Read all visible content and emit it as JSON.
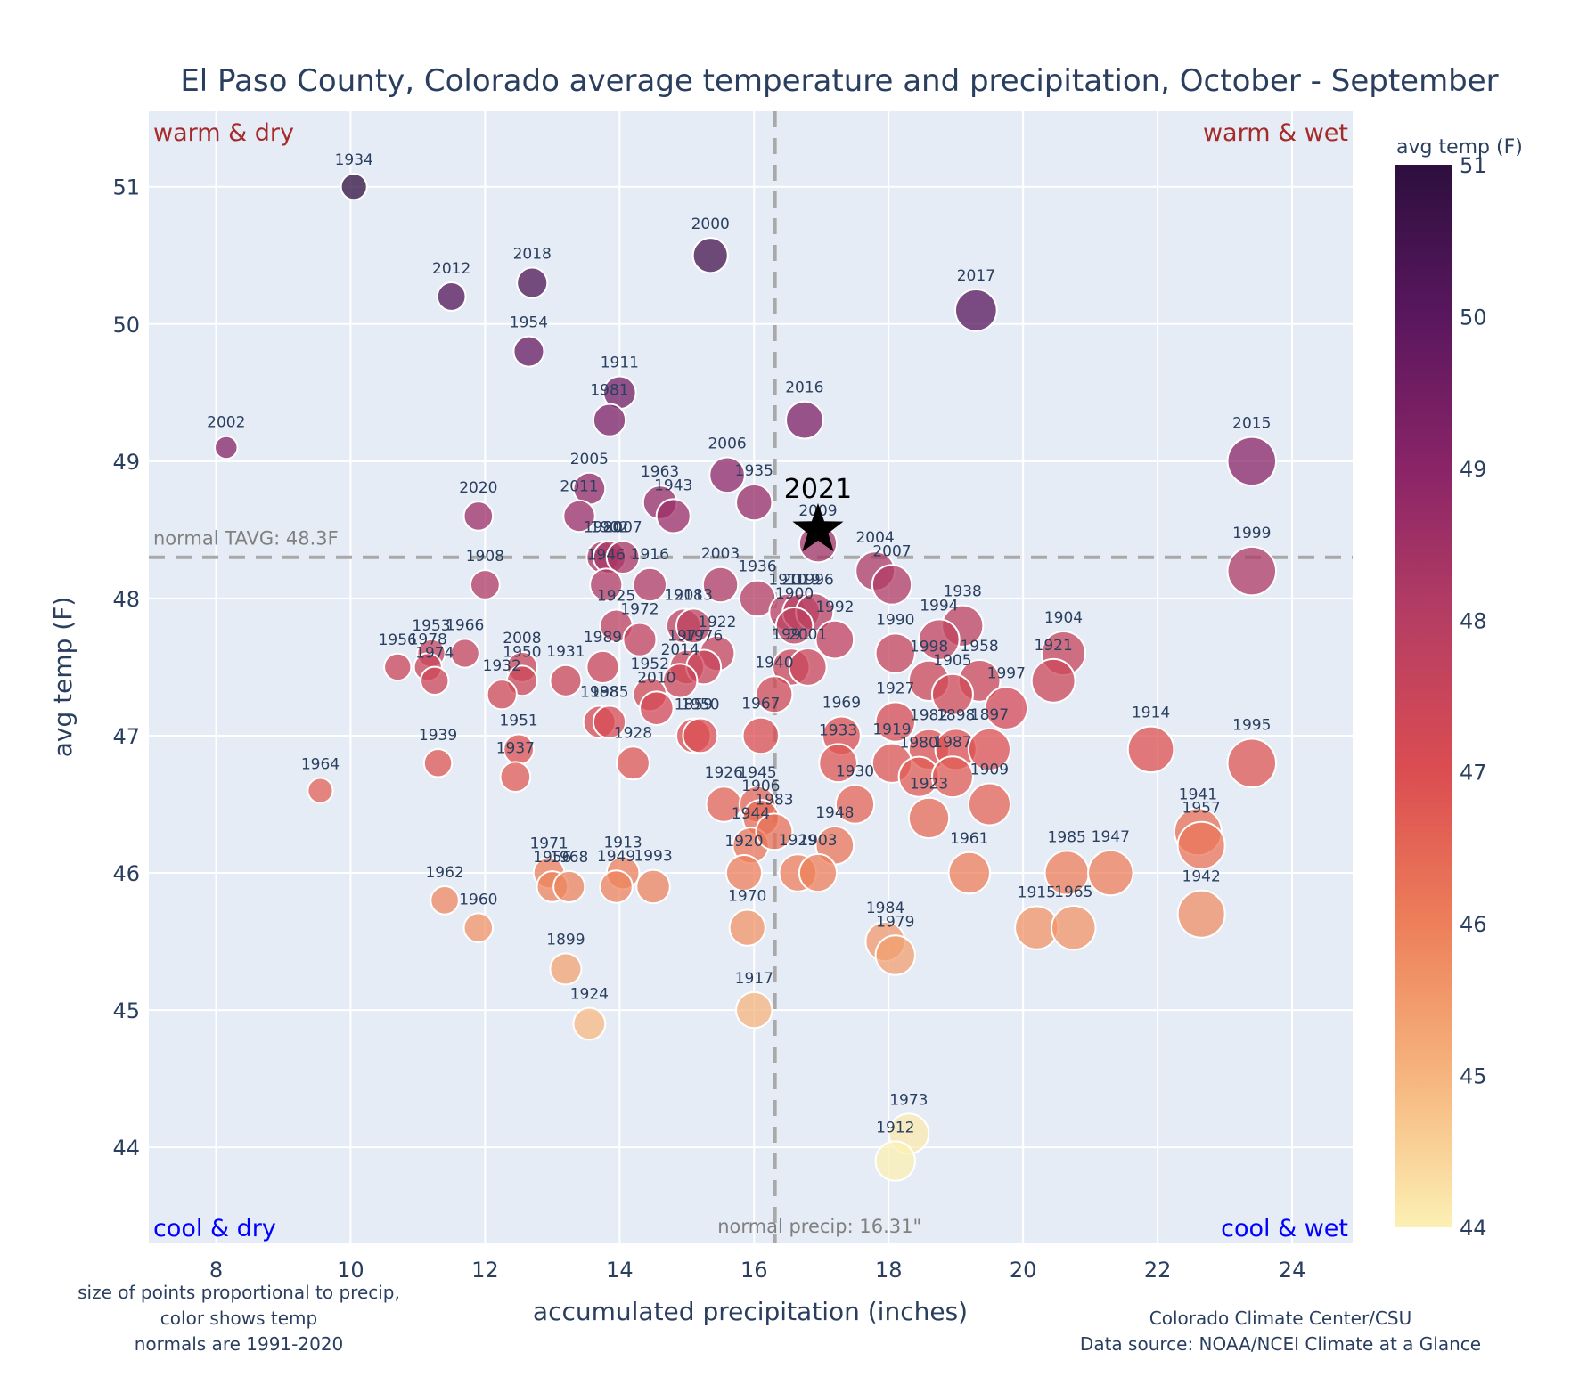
{
  "chart_data": {
    "type": "scatter",
    "title": "El Paso County, Colorado average temperature and precipitation, October - September",
    "xlabel": "accumulated precipitation (inches)",
    "ylabel": "avg temp (F)",
    "xlim": [
      7.0,
      24.9
    ],
    "ylim": [
      43.3,
      51.55
    ],
    "xticks": [
      8,
      10,
      12,
      14,
      16,
      18,
      20,
      22,
      24
    ],
    "yticks": [
      44,
      45,
      46,
      47,
      48,
      49,
      50,
      51
    ],
    "grid": true,
    "colorbar": {
      "title": "avg temp (F)",
      "range": [
        44,
        51
      ],
      "ticks": [
        44,
        45,
        46,
        47,
        48,
        49,
        50,
        51
      ],
      "colorscale": [
        "#fcf0b3",
        "#f6b47e",
        "#ed7f5a",
        "#db4d51",
        "#b63e63",
        "#8a2467",
        "#5a175e",
        "#2d0f3e"
      ]
    },
    "normals": {
      "tavg": 48.3,
      "tavg_label": "normal TAVG: 48.3F",
      "precip": 16.31,
      "precip_label": "normal precip: 16.31\""
    },
    "quadrants": {
      "top_left": "warm & dry",
      "top_right": "warm & wet",
      "bottom_left": "cool & dry",
      "bottom_right": "cool & wet"
    },
    "highlight": {
      "label": "2021",
      "x": 16.95,
      "y": 48.5,
      "marker": "star"
    },
    "points": [
      {
        "year": "1934",
        "x": 10.05,
        "y": 51.0
      },
      {
        "year": "2012",
        "x": 11.5,
        "y": 50.2
      },
      {
        "year": "2018",
        "x": 12.7,
        "y": 50.3
      },
      {
        "year": "1954",
        "x": 12.65,
        "y": 49.8
      },
      {
        "year": "2000",
        "x": 15.35,
        "y": 50.5
      },
      {
        "year": "2017",
        "x": 19.3,
        "y": 50.1
      },
      {
        "year": "2002",
        "x": 8.15,
        "y": 49.1
      },
      {
        "year": "1911",
        "x": 14.0,
        "y": 49.5
      },
      {
        "year": "1981",
        "x": 13.85,
        "y": 49.3
      },
      {
        "year": "2016",
        "x": 16.75,
        "y": 49.3
      },
      {
        "year": "2015",
        "x": 23.4,
        "y": 49.0
      },
      {
        "year": "2005",
        "x": 13.55,
        "y": 48.8
      },
      {
        "year": "2011",
        "x": 13.4,
        "y": 48.6
      },
      {
        "year": "2006",
        "x": 15.6,
        "y": 48.9
      },
      {
        "year": "1963",
        "x": 14.6,
        "y": 48.7
      },
      {
        "year": "1943",
        "x": 14.8,
        "y": 48.6
      },
      {
        "year": "1935",
        "x": 16.0,
        "y": 48.7
      },
      {
        "year": "2020",
        "x": 11.9,
        "y": 48.6
      },
      {
        "year": "2009",
        "x": 16.95,
        "y": 48.4
      },
      {
        "year": "1999",
        "x": 23.4,
        "y": 48.2
      },
      {
        "year": "1980",
        "x": 13.75,
        "y": 48.3
      },
      {
        "year": "1902",
        "x": 13.85,
        "y": 48.3
      },
      {
        "year": "2007",
        "x": 14.05,
        "y": 48.3
      },
      {
        "year": "1946",
        "x": 13.8,
        "y": 48.1
      },
      {
        "year": "1916",
        "x": 14.45,
        "y": 48.1
      },
      {
        "year": "1908",
        "x": 12.0,
        "y": 48.1
      },
      {
        "year": "2003",
        "x": 15.5,
        "y": 48.1
      },
      {
        "year": "2004",
        "x": 17.8,
        "y": 48.2
      },
      {
        "year": "2007b",
        "x": 18.05,
        "y": 48.1
      },
      {
        "year": "1936",
        "x": 16.05,
        "y": 48.0
      },
      {
        "year": "1910",
        "x": 16.5,
        "y": 47.9
      },
      {
        "year": "2019",
        "x": 16.7,
        "y": 47.9
      },
      {
        "year": "1996",
        "x": 16.9,
        "y": 47.9
      },
      {
        "year": "1900",
        "x": 16.6,
        "y": 47.8
      },
      {
        "year": "1992",
        "x": 17.2,
        "y": 47.7
      },
      {
        "year": "1925",
        "x": 13.95,
        "y": 47.8
      },
      {
        "year": "1972",
        "x": 14.3,
        "y": 47.7
      },
      {
        "year": "1918",
        "x": 14.95,
        "y": 47.8
      },
      {
        "year": "2013",
        "x": 15.1,
        "y": 47.8
      },
      {
        "year": "1922",
        "x": 15.45,
        "y": 47.6
      },
      {
        "year": "1977",
        "x": 15.0,
        "y": 47.5
      },
      {
        "year": "1976",
        "x": 15.25,
        "y": 47.5
      },
      {
        "year": "2014",
        "x": 14.9,
        "y": 47.4
      },
      {
        "year": "1989",
        "x": 13.75,
        "y": 47.5
      },
      {
        "year": "1952",
        "x": 14.45,
        "y": 47.3
      },
      {
        "year": "2010",
        "x": 14.55,
        "y": 47.2
      },
      {
        "year": "1991",
        "x": 16.55,
        "y": 47.5
      },
      {
        "year": "2001",
        "x": 16.8,
        "y": 47.5
      },
      {
        "year": "1940",
        "x": 16.3,
        "y": 47.3
      },
      {
        "year": "1938",
        "x": 19.1,
        "y": 47.8
      },
      {
        "year": "1994",
        "x": 18.75,
        "y": 47.7
      },
      {
        "year": "1904",
        "x": 20.6,
        "y": 47.6
      },
      {
        "year": "1990",
        "x": 18.1,
        "y": 47.6
      },
      {
        "year": "1998",
        "x": 18.6,
        "y": 47.4
      },
      {
        "year": "1958",
        "x": 19.35,
        "y": 47.4
      },
      {
        "year": "1921",
        "x": 20.45,
        "y": 47.4
      },
      {
        "year": "1905",
        "x": 18.95,
        "y": 47.3
      },
      {
        "year": "1997",
        "x": 19.75,
        "y": 47.2
      },
      {
        "year": "1953",
        "x": 11.2,
        "y": 47.6
      },
      {
        "year": "1966",
        "x": 11.7,
        "y": 47.6
      },
      {
        "year": "1956",
        "x": 10.7,
        "y": 47.5
      },
      {
        "year": "1978",
        "x": 11.15,
        "y": 47.5
      },
      {
        "year": "1974",
        "x": 11.25,
        "y": 47.4
      },
      {
        "year": "2008",
        "x": 12.55,
        "y": 47.5
      },
      {
        "year": "1950",
        "x": 12.55,
        "y": 47.4
      },
      {
        "year": "1931",
        "x": 13.2,
        "y": 47.4
      },
      {
        "year": "1932",
        "x": 12.25,
        "y": 47.3
      },
      {
        "year": "1988",
        "x": 13.7,
        "y": 47.1
      },
      {
        "year": "1985b",
        "x": 13.85,
        "y": 47.1
      },
      {
        "year": "1859",
        "x": 15.1,
        "y": 47.0
      },
      {
        "year": "1950b",
        "x": 15.2,
        "y": 47.0
      },
      {
        "year": "1967",
        "x": 16.1,
        "y": 47.0
      },
      {
        "year": "1969",
        "x": 17.3,
        "y": 47.0
      },
      {
        "year": "1927",
        "x": 18.1,
        "y": 47.1
      },
      {
        "year": "1982",
        "x": 18.6,
        "y": 46.9
      },
      {
        "year": "1898",
        "x": 19.0,
        "y": 46.9
      },
      {
        "year": "1897",
        "x": 19.5,
        "y": 46.9
      },
      {
        "year": "1914",
        "x": 21.9,
        "y": 46.9
      },
      {
        "year": "1995",
        "x": 23.4,
        "y": 46.8
      },
      {
        "year": "1951",
        "x": 12.5,
        "y": 46.9
      },
      {
        "year": "1939",
        "x": 11.3,
        "y": 46.8
      },
      {
        "year": "1937",
        "x": 12.45,
        "y": 46.7
      },
      {
        "year": "1928",
        "x": 14.2,
        "y": 46.8
      },
      {
        "year": "1933",
        "x": 17.25,
        "y": 46.8
      },
      {
        "year": "1919",
        "x": 18.05,
        "y": 46.8
      },
      {
        "year": "1980b",
        "x": 18.45,
        "y": 46.7
      },
      {
        "year": "1987",
        "x": 18.95,
        "y": 46.7
      },
      {
        "year": "1964",
        "x": 9.55,
        "y": 46.6
      },
      {
        "year": "1926",
        "x": 15.55,
        "y": 46.5
      },
      {
        "year": "1945",
        "x": 16.05,
        "y": 46.5
      },
      {
        "year": "1906",
        "x": 16.1,
        "y": 46.4
      },
      {
        "year": "1930",
        "x": 17.5,
        "y": 46.5
      },
      {
        "year": "1909",
        "x": 19.5,
        "y": 46.5
      },
      {
        "year": "1923",
        "x": 18.6,
        "y": 46.4
      },
      {
        "year": "1944",
        "x": 15.95,
        "y": 46.2
      },
      {
        "year": "1983",
        "x": 16.3,
        "y": 46.3
      },
      {
        "year": "1948",
        "x": 17.2,
        "y": 46.2
      },
      {
        "year": "1941",
        "x": 22.6,
        "y": 46.3
      },
      {
        "year": "1957",
        "x": 22.65,
        "y": 46.2
      },
      {
        "year": "1920",
        "x": 15.85,
        "y": 46.0
      },
      {
        "year": "1929",
        "x": 16.65,
        "y": 46.0
      },
      {
        "year": "1903",
        "x": 16.95,
        "y": 46.0
      },
      {
        "year": "1961",
        "x": 19.2,
        "y": 46.0
      },
      {
        "year": "1985",
        "x": 20.65,
        "y": 46.0
      },
      {
        "year": "1947",
        "x": 21.3,
        "y": 46.0
      },
      {
        "year": "1971",
        "x": 12.95,
        "y": 46.0
      },
      {
        "year": "1956b",
        "x": 13.0,
        "y": 45.9
      },
      {
        "year": "1968",
        "x": 13.25,
        "y": 45.9
      },
      {
        "year": "1913",
        "x": 14.05,
        "y": 46.0
      },
      {
        "year": "1949",
        "x": 13.95,
        "y": 45.9
      },
      {
        "year": "1993",
        "x": 14.5,
        "y": 45.9
      },
      {
        "year": "1962",
        "x": 11.4,
        "y": 45.8
      },
      {
        "year": "1960",
        "x": 11.9,
        "y": 45.6
      },
      {
        "year": "1970",
        "x": 15.9,
        "y": 45.6
      },
      {
        "year": "1915",
        "x": 20.2,
        "y": 45.6
      },
      {
        "year": "1965",
        "x": 20.75,
        "y": 45.6
      },
      {
        "year": "1942",
        "x": 22.65,
        "y": 45.7
      },
      {
        "year": "1984",
        "x": 17.95,
        "y": 45.5
      },
      {
        "year": "1979",
        "x": 18.1,
        "y": 45.4
      },
      {
        "year": "1899",
        "x": 13.2,
        "y": 45.3
      },
      {
        "year": "1917",
        "x": 16.0,
        "y": 45.0
      },
      {
        "year": "1924",
        "x": 13.55,
        "y": 44.9
      },
      {
        "year": "1973",
        "x": 18.3,
        "y": 44.1
      },
      {
        "year": "1912",
        "x": 18.1,
        "y": 43.9
      }
    ],
    "label_overrides": {
      "2007b": "2007",
      "1985b": "1985",
      "1950b": "1950",
      "1980b": "1980",
      "1956b": "1956"
    }
  },
  "notes": {
    "left": [
      "size of points proportional to precip,",
      "color shows temp",
      "normals are 1991-2020"
    ],
    "right": [
      "Colorado Climate Center/CSU",
      "Data source: NOAA/NCEI Climate at a Glance"
    ]
  }
}
